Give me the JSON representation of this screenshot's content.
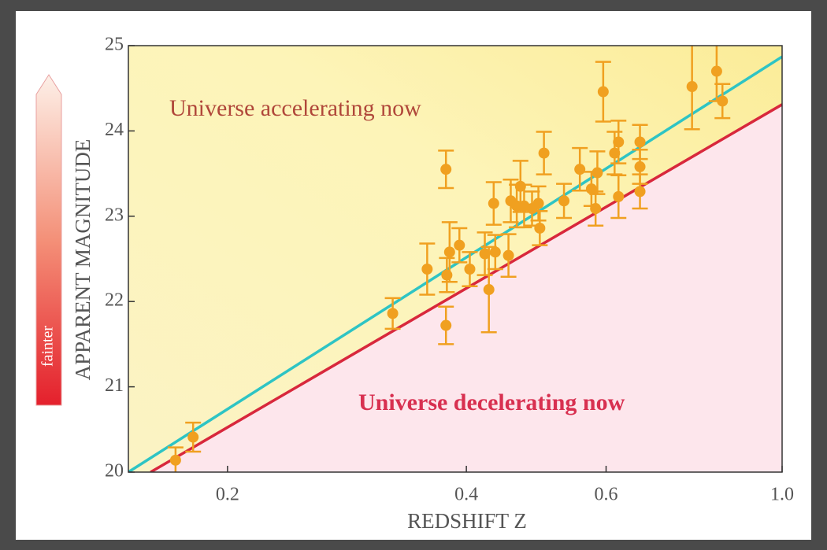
{
  "chart_data": {
    "type": "scatter",
    "xscale": "log",
    "xlabel": "REDSHIFT  Z",
    "ylabel": "APPARENT MAGNITUDE",
    "xlim": [
      0.15,
      1.0
    ],
    "ylim": [
      20,
      25
    ],
    "xticks": [
      0.2,
      0.4,
      0.6,
      {
        "value": 1,
        "label": "1.0"
      }
    ],
    "yticks": [
      20,
      21,
      22,
      23,
      24,
      25
    ],
    "annotations": [
      "Universe accelerating now",
      "Universe decelerating now",
      "fainter"
    ],
    "series": [
      {
        "color": "#f0a020",
        "x": [
          0.172,
          0.181,
          0.323,
          0.357,
          0.377,
          0.377,
          0.378,
          0.381,
          0.392,
          0.404,
          0.422,
          0.427,
          0.433,
          0.435,
          0.452,
          0.455,
          0.463,
          0.468,
          0.473,
          0.484,
          0.493,
          0.495,
          0.501,
          0.531,
          0.556,
          0.575,
          0.582,
          0.585,
          0.595,
          0.615,
          0.622,
          0.622,
          0.662,
          0.662,
          0.662,
          0.77,
          0.827,
          0.841
        ],
        "values": [
          20.14,
          20.41,
          21.86,
          22.38,
          23.55,
          21.72,
          22.31,
          22.58,
          22.66,
          22.38,
          22.56,
          22.14,
          23.15,
          22.58,
          22.54,
          23.18,
          23.12,
          23.35,
          23.12,
          23.09,
          23.15,
          22.86,
          23.74,
          23.18,
          23.55,
          23.32,
          23.09,
          23.51,
          24.46,
          23.74,
          23.87,
          23.23,
          23.87,
          23.58,
          23.29,
          24.52,
          24.7,
          24.35
        ],
        "errors": [
          0.15,
          0.17,
          0.18,
          0.3,
          0.22,
          0.22,
          0.2,
          0.35,
          0.2,
          0.2,
          0.25,
          0.5,
          0.25,
          0.2,
          0.25,
          0.25,
          0.25,
          0.3,
          0.25,
          0.2,
          0.2,
          0.2,
          0.25,
          0.2,
          0.25,
          0.2,
          0.2,
          0.25,
          0.35,
          0.25,
          0.25,
          0.25,
          0.2,
          0.2,
          0.2,
          0.5,
          0.35,
          0.2
        ]
      }
    ],
    "models": [
      {
        "color": "#2ec4c4",
        "x": [
          0.15,
          1.0
        ],
        "values": [
          20,
          24.87
        ]
      },
      {
        "color": "#d8283c",
        "x": [
          0.16,
          1.0
        ],
        "values": [
          20,
          24.31
        ]
      }
    ]
  }
}
